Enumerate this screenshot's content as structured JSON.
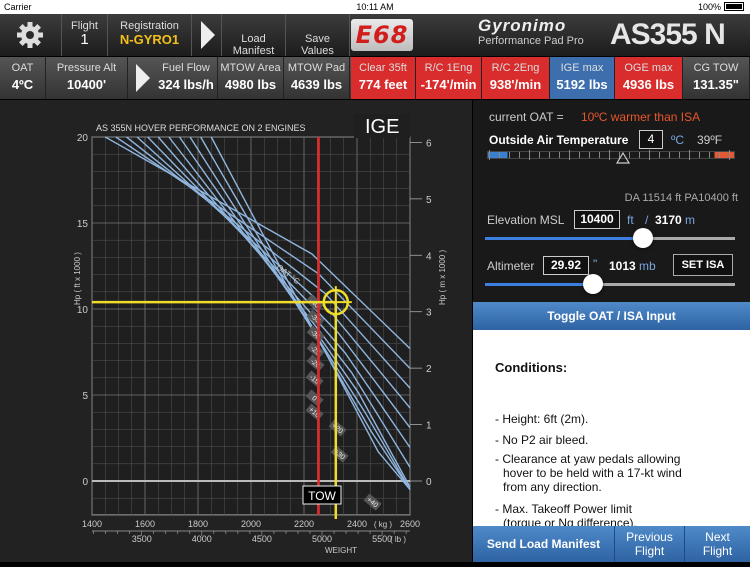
{
  "status": {
    "carrier": "Carrier",
    "time": "10:11 AM",
    "battery": "100%"
  },
  "topbar": {
    "flight_label": "Flight",
    "flight_value": "1",
    "registration_label": "Registration",
    "registration_value": "N-GYRO1",
    "load_manifest": "Load\nManifest",
    "save_values": "Save\nValues",
    "e68": "E68",
    "brand": "Gyronimo",
    "brand_sub": "Performance Pad Pro",
    "model": "AS355 N"
  },
  "bar2": [
    {
      "label": "OAT",
      "value": "4ºC",
      "style": "grey"
    },
    {
      "label": "Pressure Alt",
      "value": "10400'",
      "style": "grey"
    },
    {
      "label": "Fuel Flow",
      "value": "324 lbs/h",
      "style": "grey"
    },
    {
      "label": "MTOW Area",
      "value": "4980 lbs",
      "style": "grey"
    },
    {
      "label": "MTOW Pad",
      "value": "4639 lbs",
      "style": "grey"
    },
    {
      "label": "Clear 35ft",
      "value": "774 feet",
      "style": "red"
    },
    {
      "label": "R/C 1Eng",
      "value": "-174'/min",
      "style": "red"
    },
    {
      "label": "R/C 2Eng",
      "value": "938'/min",
      "style": "red"
    },
    {
      "label": "IGE max",
      "value": "5192 lbs",
      "style": "blue"
    },
    {
      "label": "OGE max",
      "value": "4936 lbs",
      "style": "red"
    },
    {
      "label": "CG TOW",
      "value": "131.35\"",
      "style": "grey"
    }
  ],
  "chart": {
    "title": "AS 355N HOVER PERFORMANCE ON 2 ENGINES",
    "ige": "IGE",
    "ylabel_left": "Hp ( ft x 1000 )",
    "ylabel_right": "Hp ( m x 1000 )",
    "xlabel": "WEIGHT",
    "kg_unit": "( kg )",
    "lb_unit": "( lb )",
    "oat_label": "OAT °C",
    "tow_label": "TOW",
    "y_ft_ticks": [
      "0",
      "5",
      "10",
      "15",
      "20"
    ],
    "y_m_ticks": [
      "0",
      "1",
      "2",
      "3",
      "4",
      "5",
      "6"
    ],
    "x_kg_ticks": [
      "1400",
      "1600",
      "1800",
      "2000",
      "2200",
      "2400",
      "2600"
    ],
    "x_lb_ticks": [
      "3500",
      "4000",
      "4500",
      "5000",
      "5500"
    ],
    "temp_labels": [
      "-40",
      "-35",
      "-30",
      "-25",
      "-20",
      "-15",
      "0",
      "+10",
      "+20",
      "+30",
      "+40"
    ]
  },
  "chart_data": {
    "type": "line",
    "title": "AS 355N HOVER PERFORMANCE ON 2 ENGINES",
    "xlabel": "WEIGHT",
    "ylabel": "Hp ( ft x 1000 )",
    "xlim_kg": [
      1400,
      2600
    ],
    "ylim_ft": [
      -2,
      20
    ],
    "series_names": [
      "-40",
      "-35",
      "-30",
      "-25",
      "-20",
      "-15",
      "0",
      "+10",
      "+20",
      "+30",
      "+40"
    ],
    "readout": {
      "hp_ft_x1000": 10.4,
      "tow_kg": 2320,
      "red_line_kg": 2255
    }
  },
  "right": {
    "current_oat_label": "current OAT =",
    "current_oat_value": "10ºC warmer than ISA",
    "oat_title": "Outside Air Temperature",
    "oat_c": "4",
    "oat_c_unit": "ºC",
    "oat_f": "39ºF",
    "da_pa": "DA 11514 ft  PA10400 ft",
    "elev_label": "Elevation MSL",
    "elev_ft": "10400",
    "elev_ft_unit": "ft",
    "slash": "/",
    "elev_m": "3170",
    "elev_m_unit": "m",
    "alt_label": "Altimeter",
    "alt_in": "29.92",
    "alt_in_unit": "\"",
    "alt_mb": "1013",
    "alt_mb_unit": "mb",
    "set_isa": "SET ISA",
    "elev_slider": 0.63,
    "alt_slider": 0.43,
    "toggle": "Toggle OAT / ISA Input",
    "cond_title": "Conditions:",
    "conditions": [
      "- Height: 6ft (2m).",
      "- No P2 air bleed.",
      "- Clearance at yaw pedals allowing hover to be held with a 17-kt wind from any direction.",
      "- Max. Takeoff Power limit (torque or Ng difference)."
    ],
    "send_manifest": "Send Load Manifest",
    "prev_flight": "Previous Flight",
    "next_flight": "Next Flight"
  }
}
